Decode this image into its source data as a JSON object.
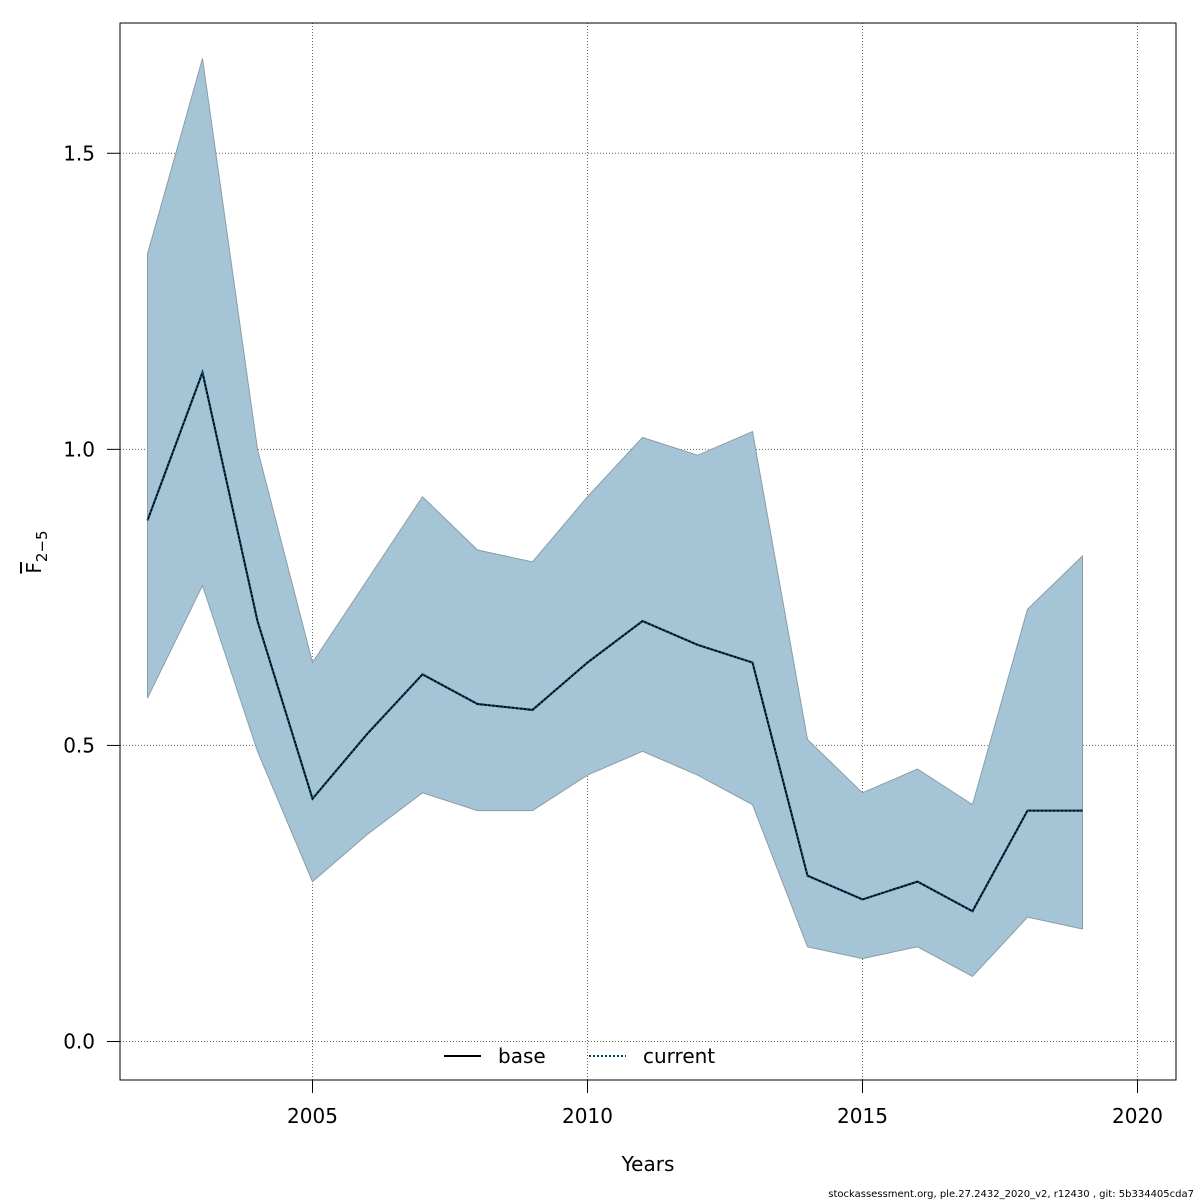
{
  "chart_data": {
    "type": "line",
    "title": "",
    "xlabel": "Years",
    "ylabel_main": "F",
    "ylabel_sub": "2−5",
    "xlim": [
      2001.5,
      2020.7
    ],
    "ylim": [
      -0.065,
      1.72
    ],
    "xticks": [
      2005,
      2010,
      2015,
      2020
    ],
    "yticks": [
      0.0,
      0.5,
      1.0,
      1.5
    ],
    "xtick_labels": [
      "2005",
      "2010",
      "2015",
      "2020"
    ],
    "ytick_labels": [
      "0.0",
      "0.5",
      "1.0",
      "1.5"
    ],
    "grid": true,
    "legend_position": "bottom",
    "x": [
      2002,
      2003,
      2004,
      2005,
      2006,
      2007,
      2008,
      2009,
      2010,
      2011,
      2012,
      2013,
      2014,
      2015,
      2016,
      2017,
      2018,
      2019
    ],
    "band": {
      "color": "#a5c4d5",
      "lower": [
        0.58,
        0.77,
        0.49,
        0.27,
        0.35,
        0.42,
        0.39,
        0.39,
        0.45,
        0.49,
        0.45,
        0.4,
        0.16,
        0.14,
        0.16,
        0.11,
        0.21,
        0.19
      ],
      "upper": [
        1.33,
        1.66,
        1.0,
        0.64,
        0.78,
        0.92,
        0.83,
        0.81,
        0.92,
        1.02,
        0.99,
        1.03,
        0.51,
        0.42,
        0.46,
        0.4,
        0.73,
        0.82
      ]
    },
    "series": [
      {
        "name": "base",
        "color": "#000000",
        "dash": "solid",
        "values": [
          0.88,
          1.13,
          0.71,
          0.41,
          0.52,
          0.62,
          0.57,
          0.56,
          0.64,
          0.71,
          0.67,
          0.64,
          0.28,
          0.24,
          0.27,
          0.22,
          0.39,
          0.39
        ]
      },
      {
        "name": "current",
        "color": "#00506e",
        "dash": "dotted",
        "values": [
          0.88,
          1.13,
          0.71,
          0.41,
          0.52,
          0.62,
          0.57,
          0.56,
          0.64,
          0.71,
          0.67,
          0.64,
          0.28,
          0.24,
          0.27,
          0.22,
          0.39,
          0.39
        ]
      }
    ]
  },
  "footer": {
    "text": "stockassessment.org, ple.27.2432_2020_v2, r12430 , git: 5b334405cda7"
  }
}
